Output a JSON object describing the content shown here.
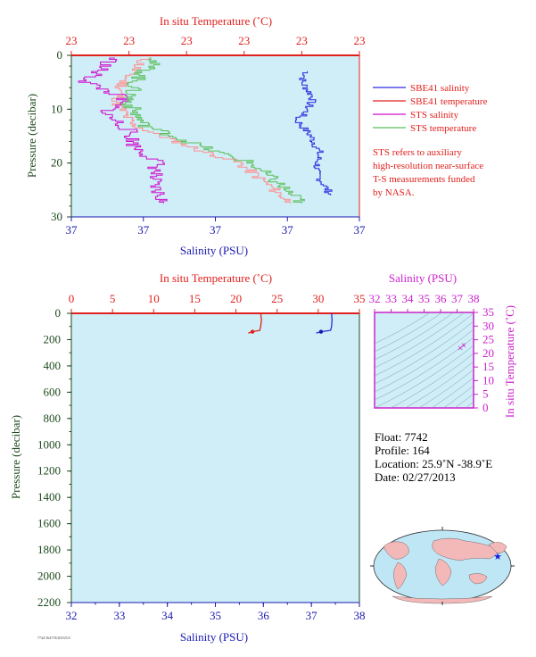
{
  "colors": {
    "plot_bg": "#cfeef7",
    "sbe_salinity": "#2a2ae0",
    "sbe_temperature": "#e0201c",
    "sts_salinity": "#d010d0",
    "sts_temperature": "#5cbf5c",
    "sts_temperature_pink": "#ff9090",
    "temp_axis": "#e0201c",
    "sal_axis": "#1a1ab0",
    "pressure_axis": "#1e4a1e",
    "ts_axis": "#cc22cc"
  },
  "top_panel": {
    "top_axis_title": "In situ Temperature (˚C)",
    "top_ticks": [
      "23",
      "23",
      "23",
      "23",
      "23",
      "23"
    ],
    "bottom_axis_title": "Salinity (PSU)",
    "bottom_ticks": [
      "37",
      "37",
      "37",
      "37",
      "37"
    ],
    "left_axis_title": "Pressure (decibar)",
    "left_ticks": [
      "0",
      "10",
      "20",
      "30"
    ]
  },
  "legend": {
    "items": [
      {
        "label": "SBE41 salinity",
        "color": "#2a2ae0"
      },
      {
        "label": "SBE41 temperature",
        "color": "#e0201c"
      },
      {
        "label": "STS salinity",
        "color": "#d010d0"
      },
      {
        "label": "STS temperature",
        "color": "#5cbf5c"
      }
    ],
    "note_lines": [
      "STS refers to auxiliary",
      "high-resolution near-surface",
      "T-S measurements funded",
      "by NASA."
    ]
  },
  "bottom_panel": {
    "top_axis_title": "In situ Temperature (˚C)",
    "top_ticks": [
      "0",
      "5",
      "10",
      "15",
      "20",
      "25",
      "30",
      "35"
    ],
    "bottom_axis_title": "Salinity (PSU)",
    "bottom_ticks": [
      "32",
      "33",
      "34",
      "35",
      "36",
      "37",
      "38"
    ],
    "left_axis_title": "Pressure (decibar)",
    "left_ticks": [
      "0",
      "200",
      "400",
      "600",
      "800",
      "1000",
      "1200",
      "1400",
      "1600",
      "1800",
      "2000",
      "2200"
    ]
  },
  "ts_panel": {
    "top_axis_title": "Salinity (PSU)",
    "top_ticks": [
      "32",
      "33",
      "34",
      "35",
      "36",
      "37",
      "38"
    ],
    "right_axis_title": "In situ Temperature (˚C)",
    "right_ticks": [
      "0",
      "5",
      "10",
      "15",
      "20",
      "25",
      "30",
      "35"
    ]
  },
  "float_info": {
    "float": "Float:  7742",
    "profile": "Profile:  164",
    "location": "Location:  25.9˚N  -38.9˚E",
    "date": "Date:  02/27/2013"
  },
  "footer_code": "7742/164/7/8/2013/5/4",
  "chart_data": [
    {
      "type": "line",
      "title": "",
      "xlabel_top": "In situ Temperature (˚C)",
      "xlabel_bottom": "Salinity (PSU)",
      "ylabel": "Pressure (decibar)",
      "ylim": [
        0,
        30
      ],
      "grid": false,
      "series": [
        {
          "name": "SBE41 salinity",
          "points": [
            [
              0.82,
              3
            ],
            [
              0.8,
              5
            ],
            [
              0.84,
              8
            ],
            [
              0.81,
              11
            ],
            [
              0.78,
              12
            ],
            [
              0.83,
              15
            ],
            [
              0.86,
              18
            ],
            [
              0.85,
              22
            ],
            [
              0.9,
              26
            ]
          ]
        },
        {
          "name": "SBE41 temperature",
          "points": [
            [
              0.0,
              0
            ],
            [
              1.0,
              0
            ]
          ]
        },
        {
          "name": "STS salinity",
          "points": [
            [
              0.15,
              0.5
            ],
            [
              0.05,
              5
            ],
            [
              0.18,
              8
            ],
            [
              0.12,
              11
            ],
            [
              0.2,
              14
            ],
            [
              0.22,
              17
            ],
            [
              0.3,
              20
            ],
            [
              0.28,
              24
            ],
            [
              0.32,
              27.5
            ]
          ]
        },
        {
          "name": "STS temperature",
          "points": [
            [
              0.3,
              0.5
            ],
            [
              0.22,
              5
            ],
            [
              0.2,
              9
            ],
            [
              0.25,
              13
            ],
            [
              0.4,
              16
            ],
            [
              0.5,
              18
            ],
            [
              0.62,
              20
            ],
            [
              0.72,
              24
            ],
            [
              0.8,
              27.5
            ]
          ]
        }
      ]
    },
    {
      "type": "line",
      "title": "",
      "xlabel_top": "In situ Temperature (˚C)",
      "xlabel_bottom": "Salinity (PSU)",
      "ylabel": "Pressure (decibar)",
      "xlim_temperature": [
        0,
        35
      ],
      "xlim_salinity": [
        32,
        38
      ],
      "ylim": [
        0,
        2200
      ],
      "grid": false,
      "series": [
        {
          "name": "SBE41 temperature",
          "points": [
            [
              23.0,
              0
            ],
            [
              23.1,
              50
            ],
            [
              23.0,
              100
            ],
            [
              22.9,
              130
            ],
            [
              22.0,
              140
            ],
            [
              21.5,
              150
            ]
          ]
        },
        {
          "name": "SBE41 salinity",
          "points": [
            [
              37.42,
              0
            ],
            [
              37.43,
              50
            ],
            [
              37.42,
              100
            ],
            [
              37.4,
              130
            ],
            [
              37.2,
              140
            ],
            [
              37.1,
              150
            ]
          ]
        }
      ]
    },
    {
      "type": "scatter",
      "title": "",
      "xlabel": "Salinity (PSU)",
      "ylabel": "In situ Temperature (˚C)",
      "xlim": [
        32,
        38
      ],
      "ylim": [
        0,
        35
      ],
      "series": [
        {
          "name": "T-S",
          "points": [
            [
              37.4,
              23.0
            ],
            [
              37.2,
              22.0
            ]
          ]
        }
      ]
    }
  ]
}
